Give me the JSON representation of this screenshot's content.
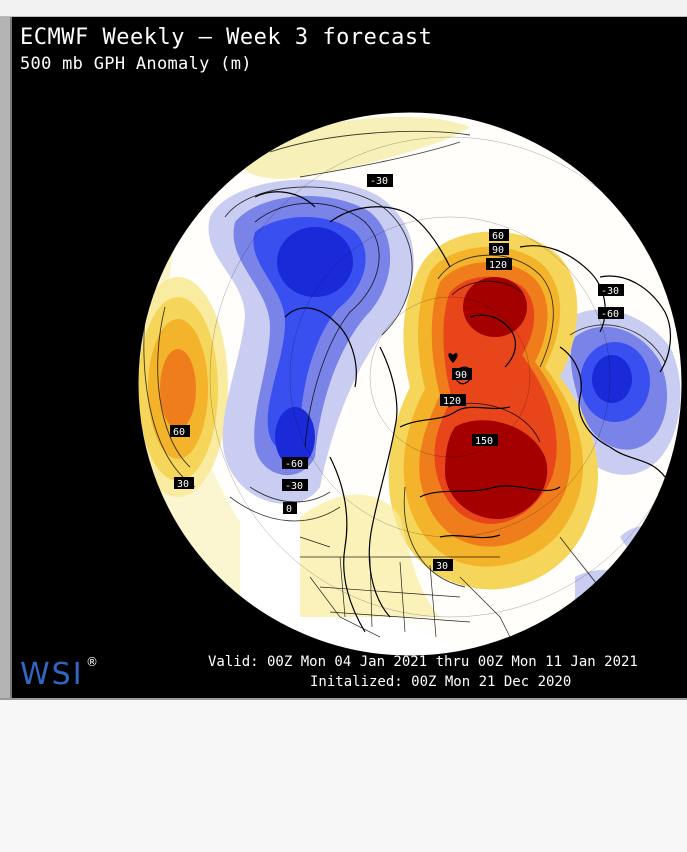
{
  "header": {
    "title": "ECMWF Weekly – Week 3 forecast",
    "subtitle": "500 mb GPH Anomaly (m)"
  },
  "footer": {
    "logo": "WSI",
    "logo_mark": "®",
    "valid": "Valid: 00Z Mon 04 Jan 2021 thru 00Z Mon 11 Jan 2021",
    "initialized": "Initalized: 00Z Mon 21 Dec 2020"
  },
  "contour_labels": {
    "l1": "-30",
    "l2": "60",
    "l3": "90",
    "l4": "120",
    "l5": "-30",
    "l6": "-60",
    "l7": "90",
    "l8": "120",
    "l9": "150",
    "l10": "60",
    "l11": "30",
    "l12": "-60",
    "l13": "-30",
    "l14": "0",
    "l15": "30"
  },
  "colors": {
    "positive_strong": "#a40000",
    "positive": "#e8451a",
    "positive_mid": "#f59a1b",
    "positive_light": "#f7e07a",
    "positive_faint": "#f9f4c8",
    "neutral": "#ffffff",
    "negative_faint": "#c9cdf1",
    "negative_light": "#7a84e8",
    "negative": "#3a4ff0",
    "negative_strong": "#1a2ad8",
    "logo": "#2f67c2"
  }
}
